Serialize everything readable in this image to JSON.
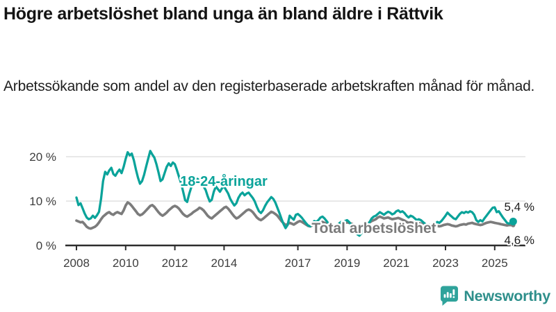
{
  "header": {
    "title": "Högre arbetslöshet bland unga än bland äldre i Rättvik",
    "subtitle": "Arbetssökande som andel av den registerbaserade arbetskraften månad för månad."
  },
  "chart_data": {
    "type": "line",
    "title": "",
    "xlabel": "",
    "ylabel": "",
    "x_unit": "month",
    "x_start": "2008-01",
    "x_end": "2025-10",
    "xlim": [
      2007.6,
      2026.2
    ],
    "ylim": [
      0,
      22
    ],
    "grid": "horizontal",
    "xticks": [
      2008,
      2010,
      2012,
      2014,
      2017,
      2019,
      2021,
      2023,
      2025
    ],
    "yticks": [
      {
        "value": 0,
        "label": "0 %"
      },
      {
        "value": 10,
        "label": "10 %"
      },
      {
        "value": 20,
        "label": "20 %"
      }
    ],
    "colors": {
      "youth": "#0AA39A",
      "total": "#7C7C7C",
      "axis": "#2D2D2D",
      "grid": "#E1E1E1"
    },
    "series": [
      {
        "name": "18-24-åringar",
        "color": "#0AA39A",
        "end_label": "5,4 %",
        "end_value": 5.4,
        "values": [
          10.8,
          9.1,
          9.5,
          8.4,
          7.2,
          6.3,
          5.9,
          6.1,
          6.7,
          6.2,
          6.8,
          7.6,
          10.5,
          14.5,
          16.6,
          16.0,
          16.9,
          17.5,
          16.1,
          15.7,
          16.5,
          17.1,
          16.3,
          17.7,
          19.5,
          21.0,
          20.3,
          20.7,
          19.2,
          17.1,
          15.3,
          13.9,
          14.5,
          15.9,
          17.8,
          19.6,
          21.3,
          20.5,
          19.8,
          18.3,
          16.5,
          14.5,
          14.9,
          16.3,
          17.7,
          18.5,
          17.9,
          18.7,
          18.3,
          17.0,
          15.5,
          14.1,
          12.2,
          10.2,
          9.8,
          11.6,
          13.1,
          13.9,
          14.5,
          15.0,
          14.7,
          14.1,
          13.3,
          12.5,
          11.1,
          9.9,
          10.3,
          12.1,
          13.3,
          12.7,
          12.1,
          12.9,
          13.3,
          12.5,
          11.7,
          10.5,
          9.7,
          9.0,
          9.5,
          10.7,
          11.5,
          11.9,
          11.3,
          11.7,
          11.9,
          11.3,
          10.7,
          9.9,
          8.7,
          7.7,
          7.3,
          7.9,
          8.9,
          9.7,
          10.3,
          10.9,
          10.5,
          9.7,
          8.5,
          7.3,
          6.0,
          4.8,
          3.9,
          4.6,
          6.7,
          6.2,
          5.8,
          6.9,
          7.1,
          6.7,
          6.2,
          5.6,
          5.0,
          4.5,
          4.3,
          4.9,
          5.5,
          5.3,
          5.7,
          6.3,
          6.5,
          6.1,
          5.5,
          4.9,
          4.3,
          3.9,
          3.7,
          4.3,
          4.9,
          5.3,
          5.1,
          5.5,
          5.7,
          5.3,
          4.7,
          3.9,
          3.1,
          2.5,
          2.2,
          2.7,
          3.5,
          4.1,
          4.7,
          5.3,
          6.1,
          6.5,
          6.7,
          7.1,
          7.5,
          7.2,
          6.9,
          7.3,
          7.6,
          7.4,
          7.0,
          7.2,
          7.7,
          7.9,
          7.5,
          7.7,
          7.3,
          6.7,
          6.3,
          6.7,
          6.5,
          6.1,
          5.7,
          5.9,
          5.7,
          5.3,
          4.9,
          4.5,
          4.7,
          4.3,
          4.5,
          4.9,
          5.3,
          5.1,
          5.5,
          6.1,
          6.7,
          7.4,
          6.9,
          6.5,
          6.1,
          5.9,
          6.5,
          7.1,
          7.5,
          7.3,
          7.6,
          7.4,
          7.7,
          7.5,
          6.9,
          5.7,
          5.3,
          5.7,
          5.4,
          6.1,
          6.7,
          7.3,
          7.9,
          8.5,
          8.6,
          7.5,
          7.7,
          7.0,
          6.3,
          5.7,
          5.1,
          4.9,
          5.2,
          5.4
        ]
      },
      {
        "name": "Total arbetslöshet",
        "color": "#7C7C7C",
        "end_label": "4,6 %",
        "end_value": 4.6,
        "values": [
          5.6,
          5.4,
          5.2,
          5.3,
          4.8,
          4.2,
          3.9,
          3.8,
          4.0,
          4.2,
          4.6,
          5.2,
          5.9,
          6.5,
          6.9,
          7.3,
          7.5,
          7.1,
          6.9,
          7.3,
          7.5,
          7.3,
          7.1,
          7.9,
          9.0,
          9.7,
          9.4,
          8.9,
          8.3,
          7.7,
          7.1,
          6.8,
          7.0,
          7.4,
          7.9,
          8.4,
          8.9,
          9.1,
          8.7,
          8.1,
          7.5,
          7.0,
          6.7,
          7.0,
          7.4,
          7.9,
          8.3,
          8.7,
          8.9,
          8.7,
          8.3,
          7.7,
          7.1,
          6.7,
          6.5,
          6.8,
          7.1,
          7.5,
          7.8,
          8.1,
          8.5,
          8.3,
          7.9,
          7.3,
          6.7,
          6.3,
          6.1,
          6.5,
          6.9,
          7.3,
          7.7,
          8.1,
          8.5,
          8.7,
          8.3,
          7.7,
          7.1,
          6.5,
          6.1,
          6.3,
          6.7,
          7.1,
          7.5,
          7.9,
          8.1,
          7.9,
          7.5,
          6.9,
          6.3,
          5.9,
          5.7,
          6.0,
          6.4,
          6.8,
          7.2,
          7.6,
          7.4,
          7.1,
          6.7,
          6.1,
          5.5,
          5.0,
          4.6,
          4.8,
          5.1,
          4.9,
          4.7,
          5.0,
          5.3,
          5.5,
          5.3,
          5.0,
          4.7,
          4.4,
          4.3,
          4.5,
          4.8,
          4.7,
          4.9,
          5.1,
          5.3,
          5.1,
          4.9,
          4.6,
          4.3,
          4.1,
          4.0,
          4.2,
          4.5,
          4.7,
          4.9,
          5.1,
          5.2,
          5.1,
          4.9,
          4.7,
          4.4,
          4.2,
          4.1,
          4.3,
          4.6,
          4.8,
          5.0,
          5.2,
          5.5,
          5.7,
          5.9,
          6.3,
          6.5,
          6.3,
          6.1,
          6.2,
          6.3,
          6.1,
          5.9,
          6.0,
          6.1,
          6.2,
          6.0,
          5.8,
          5.6,
          5.3,
          5.1,
          5.2,
          5.1,
          5.0,
          4.9,
          5.0,
          4.9,
          4.8,
          4.6,
          4.4,
          4.3,
          4.2,
          4.1,
          4.3,
          4.4,
          4.3,
          4.4,
          4.6,
          4.7,
          4.8,
          4.7,
          4.5,
          4.4,
          4.3,
          4.4,
          4.6,
          4.7,
          4.8,
          4.7,
          4.9,
          5.0,
          5.1,
          4.9,
          4.8,
          4.7,
          4.6,
          4.7,
          4.9,
          5.1,
          5.2,
          5.3,
          5.2,
          5.1,
          5.0,
          4.9,
          4.8,
          4.7,
          4.6,
          4.5,
          4.6,
          4.6,
          4.6
        ]
      }
    ],
    "legend_position": "inline-labels"
  },
  "footer": {
    "brand": "Newsworthy"
  }
}
